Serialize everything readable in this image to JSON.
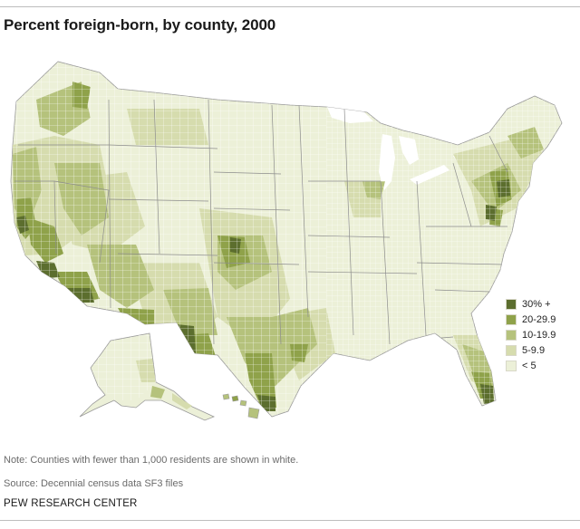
{
  "title": "Percent foreign-born, by county, 2000",
  "legend": [
    {
      "label": "30% +",
      "color": "#5c6e2e"
    },
    {
      "label": "20-29.9",
      "color": "#8fa24a"
    },
    {
      "label": "10-19.9",
      "color": "#b5c27c"
    },
    {
      "label": "5-9.9",
      "color": "#d6dcae"
    },
    {
      "label": "< 5",
      "color": "#ecf0d8"
    }
  ],
  "colors": {
    "no_data": "#ffffff",
    "county_border": "#ffffff",
    "state_border": "#8d8d8d"
  },
  "note": "Note: Counties with fewer than 1,000 residents are shown in white.",
  "source": "Source: Decennial census data SF3 files",
  "brand": "PEW RESEARCH CENTER"
}
